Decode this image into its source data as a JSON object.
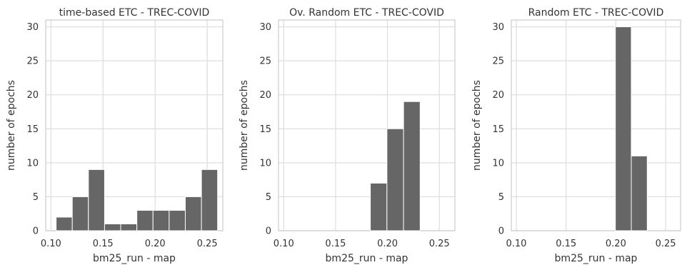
{
  "chart_data": [
    {
      "type": "bar",
      "title": "time-based ETC - TREC-COVID",
      "xlabel": "bm25_run - map",
      "ylabel": "number of epochs",
      "xlim": [
        0.095,
        0.265
      ],
      "ylim": [
        0,
        31
      ],
      "xticks": [
        "0.10",
        "0.15",
        "0.20",
        "0.25"
      ],
      "yticks": [
        "0",
        "5",
        "10",
        "15",
        "20",
        "25",
        "30"
      ],
      "grid": true,
      "bin_edges": [
        0.105,
        0.1205,
        0.136,
        0.1515,
        0.167,
        0.1825,
        0.198,
        0.2135,
        0.229,
        0.2445,
        0.26
      ],
      "values": [
        2,
        5,
        9,
        1,
        1,
        3,
        3,
        3,
        5,
        9
      ]
    },
    {
      "type": "bar",
      "title": "Ov. Random ETC - TREC-COVID",
      "xlabel": "bm25_run - map",
      "ylabel": "number of epochs",
      "xlim": [
        0.095,
        0.265
      ],
      "ylim": [
        0,
        31
      ],
      "xticks": [
        "0.10",
        "0.15",
        "0.20",
        "0.25"
      ],
      "yticks": [
        "0",
        "5",
        "10",
        "15",
        "20",
        "25",
        "30"
      ],
      "grid": true,
      "bin_edges": [
        0.1835,
        0.1995,
        0.2155,
        0.2315
      ],
      "values": [
        7,
        15,
        19
      ]
    },
    {
      "type": "bar",
      "title": "Random ETC - TREC-COVID",
      "xlabel": "bm25_run - map",
      "ylabel": "number of epochs",
      "xlim": [
        0.095,
        0.265
      ],
      "ylim": [
        0,
        31
      ],
      "xticks": [
        "0.10",
        "0.15",
        "0.20",
        "0.25"
      ],
      "yticks": [
        "0",
        "5",
        "10",
        "15",
        "20",
        "25",
        "30"
      ],
      "grid": true,
      "bin_edges": [
        0.1995,
        0.2155,
        0.2315
      ],
      "values": [
        30,
        11
      ]
    }
  ],
  "colors": {
    "bar_fill": "#666666",
    "bar_edge": "#ffffff",
    "grid": "#dddddd",
    "axes_frame": "#cccccc",
    "text": "#333333"
  }
}
